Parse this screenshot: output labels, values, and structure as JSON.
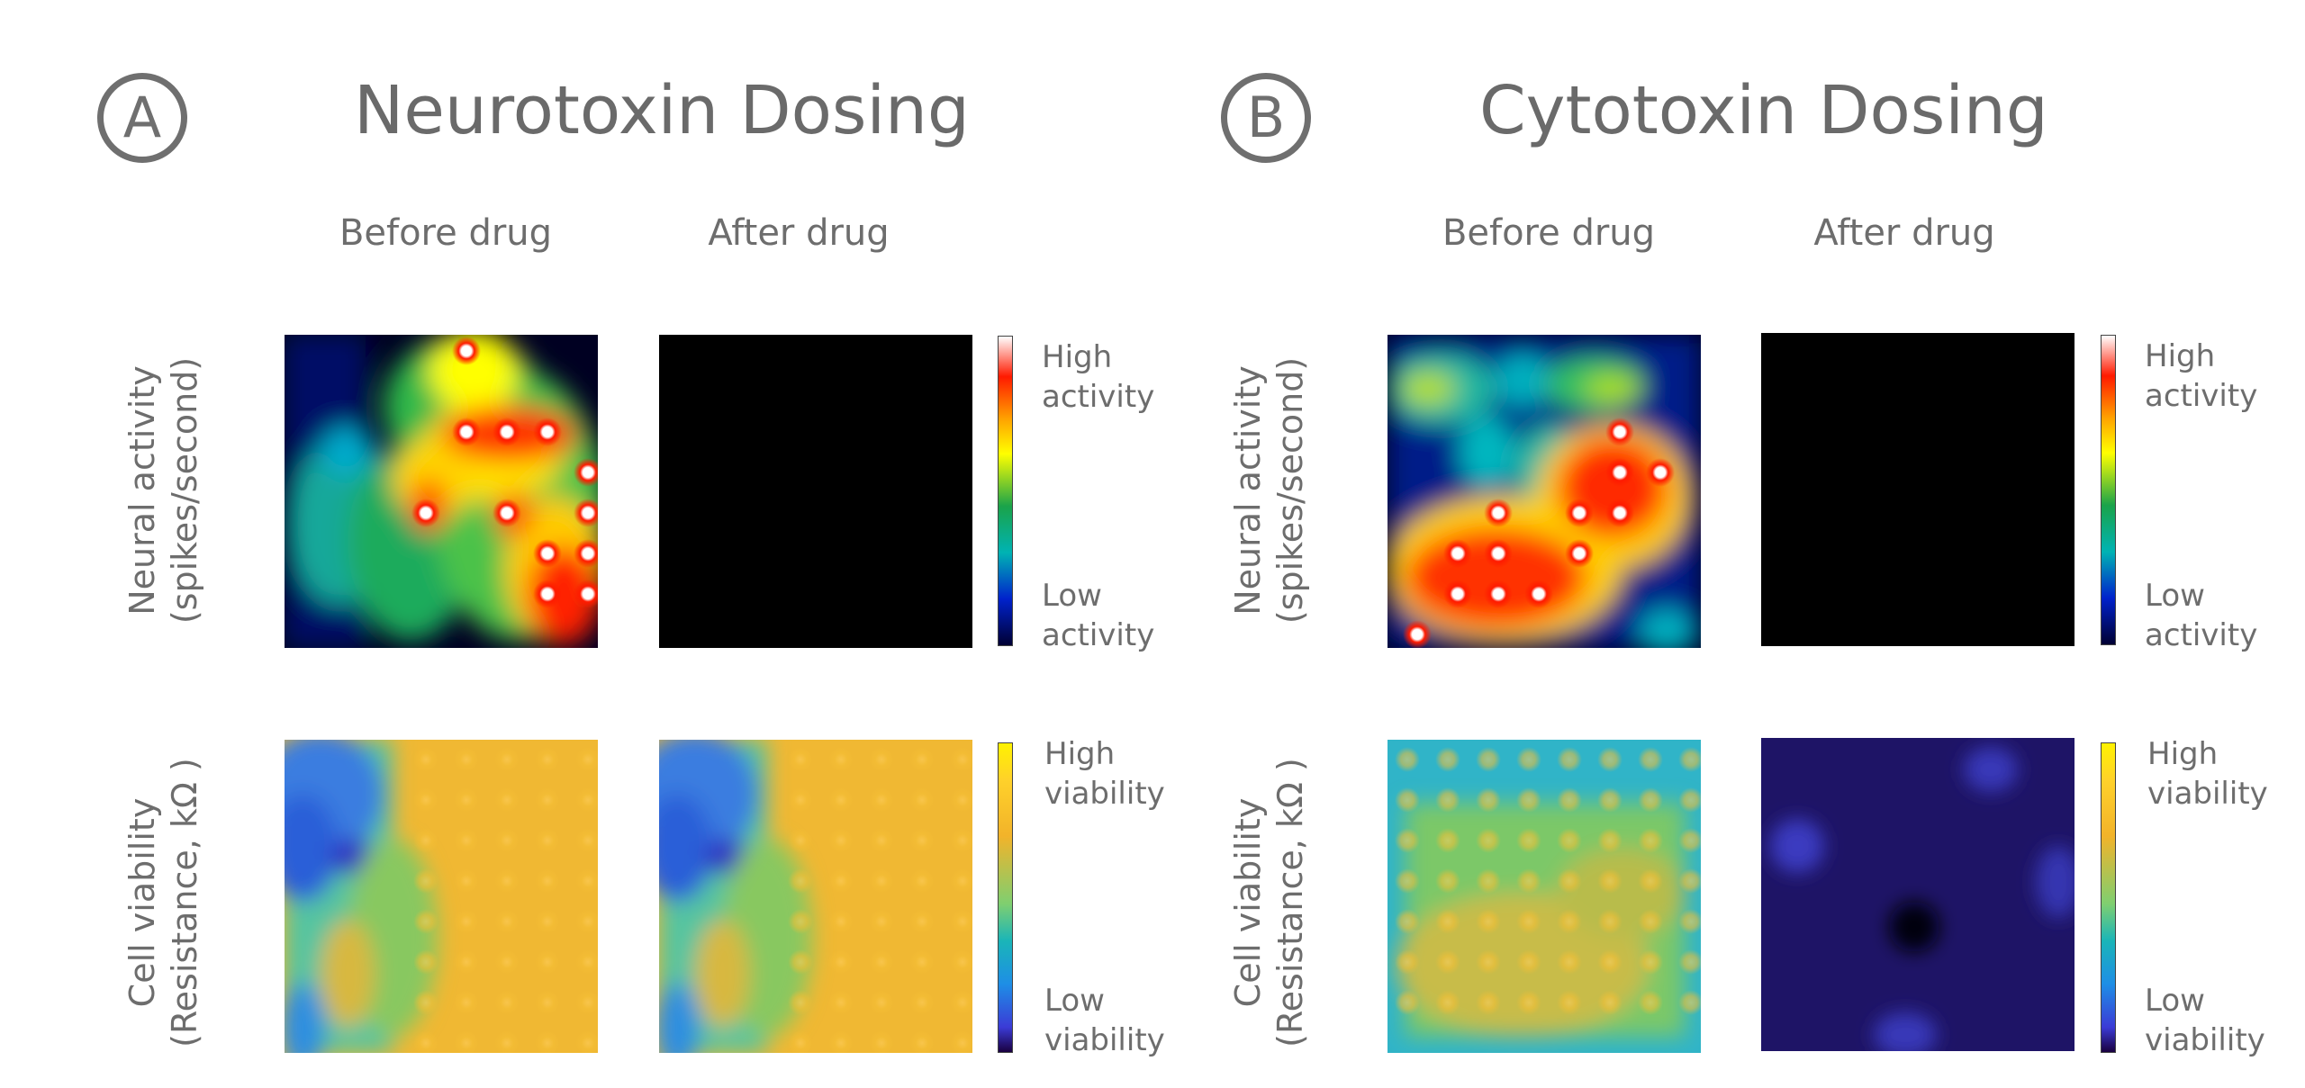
{
  "panels": [
    {
      "badge": "A",
      "title": "Neurotoxin Dosing",
      "columns": [
        "Before drug",
        "After drug"
      ],
      "rows": [
        {
          "label_line1": "Neural activity",
          "label_line2": "(spikes/second)",
          "colorbar": {
            "high": "High\nactivity",
            "low": "Low\nactivity"
          }
        },
        {
          "label_line1": "Cell viability",
          "label_line2": "(Resistance, kΩ )",
          "colorbar": {
            "high": "High\nviability",
            "low": "Low\nviability"
          }
        }
      ]
    },
    {
      "badge": "B",
      "title": "Cytotoxin Dosing",
      "columns": [
        "Before drug",
        "After drug"
      ],
      "rows": [
        {
          "label_line1": "Neural activity",
          "label_line2": "(spikes/second)",
          "colorbar": {
            "high": "High\nactivity",
            "low": "Low\nactivity"
          }
        },
        {
          "label_line1": "Cell viability",
          "label_line2": "(Resistance, kΩ )",
          "colorbar": {
            "high": "High\nviability",
            "low": "Low\nviability"
          }
        }
      ]
    }
  ],
  "colors": {
    "text": "#6b6b6b",
    "activity_scale": [
      "#000033",
      "#0022cc",
      "#00b3b3",
      "#1aa34a",
      "#ffff00",
      "#ffa500",
      "#ff1a00",
      "#ffffff"
    ],
    "viability_scale": [
      "#1a0040",
      "#3b3bd6",
      "#1e8ee6",
      "#1ab5b8",
      "#7fcf70",
      "#f2b32a",
      "#ffd12a",
      "#fff200"
    ]
  }
}
